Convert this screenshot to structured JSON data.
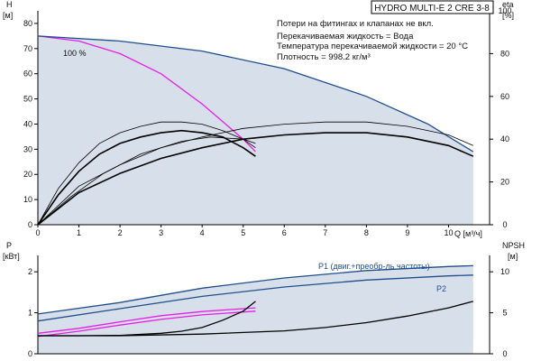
{
  "title": "HYDRO MULTI-E 2 CRE 3-8",
  "notes": [
    "Потери на фитингах и клапанах не вкл.",
    "Перекачиваемая жидкость = Вода",
    "Температура перекачиваемой жидкости = 20 °C",
    "Плотность = 998.2 кг/м³"
  ],
  "colors": {
    "envelope": "#c9d6e3",
    "envelope_light": "#e3ecf5",
    "max_curve": "#1f4e8c",
    "pink": "#e61ee6",
    "black": "#000000",
    "axis": "#000000"
  },
  "chart_data": [
    {
      "id": "head",
      "type": "line",
      "x_axis": {
        "label": "Q [м³/ч]",
        "range": [
          0,
          11
        ],
        "ticks": [
          0,
          1,
          2,
          3,
          4,
          5,
          6,
          7,
          8,
          9,
          10
        ]
      },
      "y_axis": {
        "label": "H",
        "unit": "[м]",
        "range": [
          0,
          85
        ],
        "ticks": [
          0,
          10,
          20,
          30,
          40,
          50,
          60,
          70,
          80
        ]
      },
      "y2_axis": {
        "label": "eta",
        "unit": "[%]",
        "range": [
          0,
          100
        ],
        "ticks": [
          0,
          20,
          40,
          60,
          80,
          100
        ]
      },
      "envelope_label": "",
      "series": [
        {
          "name": "100 %",
          "color": "pink",
          "axis": "y",
          "points": [
            [
              0,
              75
            ],
            [
              1,
              73
            ],
            [
              2,
              68
            ],
            [
              3,
              60
            ],
            [
              4,
              48
            ],
            [
              5,
              34
            ],
            [
              5.3,
              29
            ]
          ]
        },
        {
          "name": "",
          "color": "max_curve",
          "axis": "y",
          "points": [
            [
              0,
              75
            ],
            [
              2,
              73
            ],
            [
              4,
              69
            ],
            [
              6,
              62
            ],
            [
              8,
              51
            ],
            [
              9.5,
              40
            ],
            [
              10.6,
              29
            ]
          ]
        },
        {
          "name": "",
          "color": "black",
          "width": 1.6,
          "axis": "y2",
          "points": [
            [
              0,
              0
            ],
            [
              0.5,
              14
            ],
            [
              1,
              25
            ],
            [
              1.5,
              33
            ],
            [
              2,
              38
            ],
            [
              2.5,
              41
            ],
            [
              3,
              43
            ],
            [
              3.5,
              44
            ],
            [
              4,
              43
            ],
            [
              4.5,
              41
            ],
            [
              5,
              36
            ],
            [
              5.3,
              32
            ]
          ]
        },
        {
          "name": "",
          "color": "black",
          "width": 1.6,
          "axis": "y2",
          "points": [
            [
              0,
              0
            ],
            [
              1,
              15
            ],
            [
              2,
              24
            ],
            [
              3,
              31
            ],
            [
              4,
              36
            ],
            [
              5,
              40
            ],
            [
              6,
              42
            ],
            [
              7,
              43
            ],
            [
              8,
              43
            ],
            [
              9,
              41
            ],
            [
              10,
              37
            ],
            [
              10.6,
              32
            ]
          ]
        },
        {
          "name": "",
          "color": "black",
          "width": 0.8,
          "axis": "y2",
          "points": [
            [
              0,
              0
            ],
            [
              0.5,
              17
            ],
            [
              1,
              29
            ],
            [
              1.5,
              38
            ],
            [
              2,
              43
            ],
            [
              2.5,
              46
            ],
            [
              3,
              48
            ],
            [
              3.5,
              48
            ],
            [
              4,
              47
            ],
            [
              4.5,
              44
            ],
            [
              5,
              40
            ],
            [
              5.3,
              36
            ]
          ]
        },
        {
          "name": "",
          "color": "black",
          "width": 0.8,
          "axis": "y2",
          "points": [
            [
              0,
              0
            ],
            [
              1,
              18
            ],
            [
              2,
              28
            ],
            [
              3,
              36
            ],
            [
              4,
              41
            ],
            [
              5,
              45
            ],
            [
              6,
              47
            ],
            [
              7,
              48
            ],
            [
              8,
              48
            ],
            [
              9,
              46
            ],
            [
              10,
              42
            ],
            [
              10.6,
              37
            ]
          ]
        },
        {
          "name": "",
          "color": "black",
          "width": 0.8,
          "axis": "y2",
          "points": [
            [
              0,
              0
            ],
            [
              0.8,
              13
            ],
            [
              1.6,
              24
            ],
            [
              2.5,
              33
            ],
            [
              3.5,
              39
            ],
            [
              4.2,
              41
            ],
            [
              5,
              40
            ],
            [
              5.3,
              38
            ]
          ]
        }
      ]
    },
    {
      "id": "power",
      "type": "line",
      "x_axis": {
        "range": [
          0,
          11
        ]
      },
      "y_axis": {
        "label": "P",
        "unit": "[кВт]",
        "range": [
          0,
          2.4
        ],
        "ticks": [
          0,
          1,
          2
        ]
      },
      "y2_axis": {
        "label": "NPSH",
        "unit": "[м]",
        "range": [
          0,
          12
        ],
        "ticks": [
          0,
          5,
          10
        ]
      },
      "series": [
        {
          "name": "P1 (двиг.+преобр-ль частоты)",
          "color": "max_curve",
          "axis": "y",
          "points": [
            [
              0,
              0.97
            ],
            [
              2,
              1.25
            ],
            [
              4,
              1.6
            ],
            [
              6,
              1.85
            ],
            [
              8,
              2.03
            ],
            [
              10,
              2.13
            ],
            [
              10.6,
              2.15
            ]
          ]
        },
        {
          "name": "P2",
          "color": "max_curve",
          "axis": "y",
          "points": [
            [
              0,
              0.8
            ],
            [
              2,
              1.1
            ],
            [
              4,
              1.4
            ],
            [
              6,
              1.63
            ],
            [
              8,
              1.8
            ],
            [
              10,
              1.9
            ],
            [
              10.6,
              1.92
            ]
          ]
        },
        {
          "name": "",
          "color": "pink",
          "axis": "y",
          "points": [
            [
              0,
              0.5
            ],
            [
              1,
              0.62
            ],
            [
              2,
              0.78
            ],
            [
              3,
              0.93
            ],
            [
              4,
              1.03
            ],
            [
              5,
              1.1
            ],
            [
              5.3,
              1.12
            ]
          ]
        },
        {
          "name": "",
          "color": "pink",
          "axis": "y",
          "points": [
            [
              0,
              0.42
            ],
            [
              1,
              0.55
            ],
            [
              2,
              0.7
            ],
            [
              3,
              0.84
            ],
            [
              4,
              0.95
            ],
            [
              5,
              1.02
            ],
            [
              5.3,
              1.04
            ]
          ]
        },
        {
          "name": "",
          "color": "black",
          "axis": "y2",
          "points": [
            [
              0,
              2.2
            ],
            [
              1,
              2.2
            ],
            [
              2,
              2.25
            ],
            [
              3,
              2.5
            ],
            [
              3.5,
              2.75
            ],
            [
              4,
              3.2
            ],
            [
              4.5,
              4.1
            ],
            [
              5,
              5.2
            ],
            [
              5.3,
              6.4
            ]
          ]
        },
        {
          "name": "",
          "color": "black",
          "axis": "y2",
          "points": [
            [
              0,
              2.2
            ],
            [
              2,
              2.2
            ],
            [
              4,
              2.4
            ],
            [
              6,
              2.8
            ],
            [
              7,
              3.2
            ],
            [
              8,
              3.8
            ],
            [
              9,
              4.6
            ],
            [
              10,
              5.6
            ],
            [
              10.6,
              6.4
            ]
          ]
        }
      ]
    }
  ]
}
